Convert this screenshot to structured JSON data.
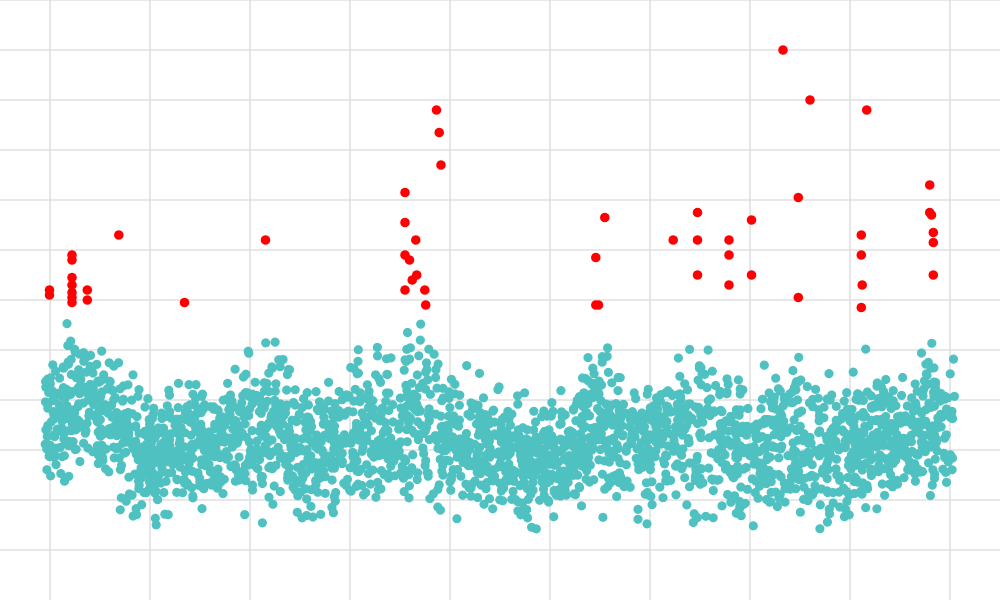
{
  "chart_data": {
    "type": "scatter",
    "title": "",
    "xlabel": "",
    "ylabel": "",
    "xlim": [
      0,
      10
    ],
    "ylim": [
      0,
      12
    ],
    "grid": true,
    "legend": "none",
    "x_gridlines": [
      0.5,
      1.5,
      2.5,
      3.5,
      4.5,
      5.5,
      6.5,
      7.5,
      8.5,
      9.5
    ],
    "y_gridlines": [
      1,
      2,
      3,
      4,
      5,
      6,
      7,
      8,
      9,
      10,
      11,
      12
    ],
    "series": [
      {
        "color": "#4fc1c1",
        "band": {
          "x_start": 0.45,
          "x_end": 9.55,
          "profile": [
            [
              0.45,
              1.9,
              5.2
            ],
            [
              0.6,
              1.7,
              5.9
            ],
            [
              0.9,
              1.8,
              6.1
            ],
            [
              1.2,
              1.3,
              5.2
            ],
            [
              1.5,
              1.1,
              4.6
            ],
            [
              1.8,
              1.3,
              4.9
            ],
            [
              2.1,
              1.4,
              4.6
            ],
            [
              2.4,
              1.3,
              5.4
            ],
            [
              2.7,
              1.0,
              5.9
            ],
            [
              3.0,
              1.1,
              4.7
            ],
            [
              3.3,
              1.2,
              4.9
            ],
            [
              3.6,
              1.2,
              5.3
            ],
            [
              3.9,
              1.2,
              5.6
            ],
            [
              4.2,
              1.1,
              6.3
            ],
            [
              4.5,
              1.3,
              5.0
            ],
            [
              4.8,
              1.2,
              4.9
            ],
            [
              5.1,
              1.2,
              4.3
            ],
            [
              5.4,
              1.2,
              4.4
            ],
            [
              5.7,
              1.4,
              4.6
            ],
            [
              6.0,
              1.4,
              5.8
            ],
            [
              6.3,
              1.2,
              4.5
            ],
            [
              6.6,
              1.3,
              5.4
            ],
            [
              6.9,
              1.0,
              5.6
            ],
            [
              7.2,
              1.0,
              5.4
            ],
            [
              7.5,
              1.1,
              4.9
            ],
            [
              7.8,
              1.2,
              5.5
            ],
            [
              8.1,
              1.2,
              5.2
            ],
            [
              8.4,
              1.1,
              4.7
            ],
            [
              8.7,
              1.3,
              5.5
            ],
            [
              9.0,
              1.4,
              5.0
            ],
            [
              9.3,
              1.5,
              5.5
            ],
            [
              9.55,
              1.5,
              5.6
            ]
          ]
        }
      },
      {
        "color": "#ff0000",
        "points": [
          [
            0.55,
            6.2
          ],
          [
            0.55,
            6.1
          ],
          [
            0.8,
            6.9
          ],
          [
            0.8,
            6.8
          ],
          [
            0.8,
            6.45
          ],
          [
            0.8,
            6.3
          ],
          [
            0.8,
            6.15
          ],
          [
            0.8,
            6.05
          ],
          [
            0.8,
            5.95
          ],
          [
            0.97,
            6.2
          ],
          [
            0.97,
            6.0
          ],
          [
            1.32,
            7.3
          ],
          [
            2.05,
            5.95
          ],
          [
            2.95,
            7.2
          ],
          [
            4.5,
            8.15
          ],
          [
            4.5,
            7.55
          ],
          [
            4.5,
            6.9
          ],
          [
            4.5,
            6.2
          ],
          [
            4.55,
            6.8
          ],
          [
            4.58,
            6.4
          ],
          [
            4.62,
            7.2
          ],
          [
            4.63,
            6.5
          ],
          [
            4.72,
            6.2
          ],
          [
            4.73,
            5.9
          ],
          [
            4.85,
            9.8
          ],
          [
            4.88,
            9.35
          ],
          [
            4.9,
            8.7
          ],
          [
            6.62,
            6.85
          ],
          [
            6.65,
            5.9
          ],
          [
            6.62,
            5.9
          ],
          [
            6.72,
            7.65
          ],
          [
            7.48,
            7.2
          ],
          [
            7.75,
            7.75
          ],
          [
            7.75,
            7.2
          ],
          [
            7.75,
            6.5
          ],
          [
            8.1,
            7.2
          ],
          [
            8.1,
            6.9
          ],
          [
            8.1,
            6.3
          ],
          [
            8.35,
            7.6
          ],
          [
            8.35,
            6.5
          ],
          [
            8.7,
            11.0
          ],
          [
            8.87,
            8.05
          ],
          [
            8.87,
            6.05
          ],
          [
            9.0,
            10.0
          ],
          [
            9.57,
            7.3
          ],
          [
            9.57,
            6.9
          ],
          [
            9.58,
            6.3
          ],
          [
            9.57,
            5.85
          ],
          [
            9.63,
            9.8
          ],
          [
            10.33,
            8.3
          ],
          [
            10.33,
            7.75
          ],
          [
            10.35,
            7.7
          ],
          [
            10.37,
            7.35
          ],
          [
            10.37,
            7.15
          ],
          [
            10.37,
            6.5
          ]
        ]
      }
    ]
  }
}
